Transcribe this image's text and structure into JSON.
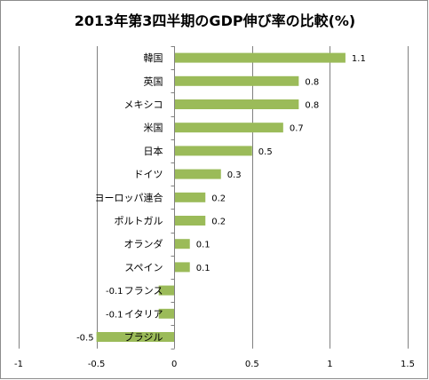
{
  "chart_data": {
    "type": "bar",
    "orientation": "horizontal",
    "title": "2013年第3四半期のGDP伸び率の比較(%)",
    "categories": [
      "韓国",
      "英国",
      "メキシコ",
      "米国",
      "日本",
      "ドイツ",
      "ヨーロッパ連合",
      "ポルトガル",
      "オランダ",
      "スペイン",
      "フランス",
      "イタリア",
      "ブラジル"
    ],
    "values": [
      1.1,
      0.8,
      0.8,
      0.7,
      0.5,
      0.3,
      0.2,
      0.2,
      0.1,
      0.1,
      -0.1,
      -0.1,
      -0.5
    ],
    "value_labels": [
      "1.1",
      "0.8",
      "0.8",
      "0.7",
      "0.5",
      "0.3",
      "0.2",
      "0.2",
      "0.1",
      "0.1",
      "-0.1",
      "-0.1",
      "-0.5"
    ],
    "xlim": [
      -1,
      1.5
    ],
    "xticks": [
      "-1",
      "-0.5",
      "0",
      "0.5",
      "1",
      "1.5"
    ],
    "xtick_values": [
      -1,
      -0.5,
      0,
      0.5,
      1,
      1.5
    ],
    "grid": "vertical",
    "bar_color": "#9bbb59",
    "xlabel": "",
    "ylabel": ""
  }
}
